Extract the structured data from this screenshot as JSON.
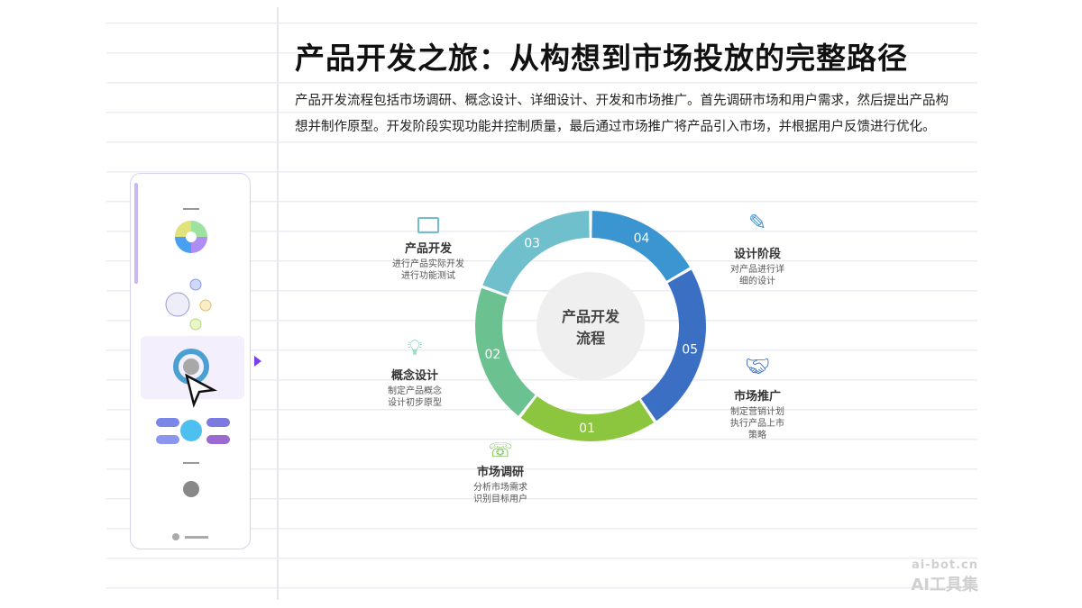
{
  "title": "产品开发之旅：从构想到市场投放的完整路径",
  "description": "产品开发流程包括市场调研、概念设计、详细设计、开发和市场推广。首先调研市场和用户需求，然后提出产品构想并制作原型。开发阶段实现功能并控制质量，最后通过市场推广将产品引入市场，并根据用户反馈进行优化。",
  "diagram": {
    "center": [
      "产品开发",
      "流程"
    ],
    "segments": [
      {
        "num": "01",
        "color": "#8cc63e"
      },
      {
        "num": "02",
        "color": "#6cc191"
      },
      {
        "num": "03",
        "color": "#6fc0cc"
      },
      {
        "num": "04",
        "color": "#3a95d0"
      },
      {
        "num": "05",
        "color": "#3a6fc4"
      }
    ],
    "stages": [
      {
        "title": "市场调研",
        "lines": [
          "分析市场需求",
          "识别目标用户"
        ],
        "icon": "phone-clock-icon"
      },
      {
        "title": "概念设计",
        "lines": [
          "制定产品概念",
          "设计初步原型"
        ],
        "icon": "lightbulb-icon"
      },
      {
        "title": "产品开发",
        "lines": [
          "进行产品实际开发",
          "进行功能测试"
        ],
        "icon": "chip-icon"
      },
      {
        "title": "设计阶段",
        "lines": [
          "对产品进行详",
          "细的设计"
        ],
        "icon": "pencil-ruler-icon"
      },
      {
        "title": "市场推广",
        "lines": [
          "制定营销计划",
          "执行产品上市",
          "策略"
        ],
        "icon": "handshake-icon"
      }
    ]
  },
  "watermark": {
    "url": "ai-bot.cn",
    "name": "AI工具集"
  }
}
